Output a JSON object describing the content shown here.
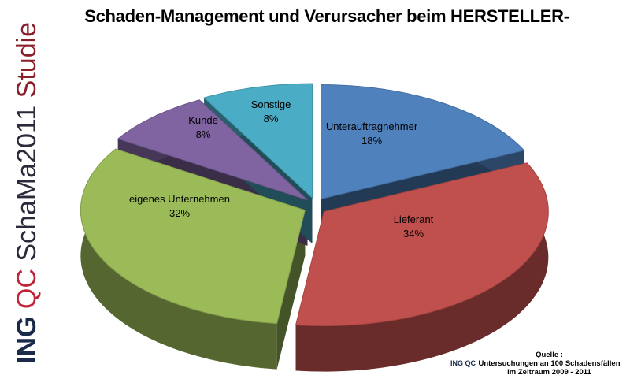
{
  "chart_data": {
    "type": "pie",
    "title": "Schaden-Management und Verursacher beim HERSTELLER-",
    "slices": [
      {
        "label": "Unterauftragnehmer",
        "value": 18,
        "value_label": "18%",
        "color": "#4f81bd"
      },
      {
        "label": "Lieferant",
        "value": 34,
        "value_label": "34%",
        "color": "#c0504d"
      },
      {
        "label": "eigenes Unternehmen",
        "value": 32,
        "value_label": "32%",
        "color": "#9bbb59"
      },
      {
        "label": "Kunde",
        "value": 8,
        "value_label": "8%",
        "color": "#8064a2"
      },
      {
        "label": "Sonstige",
        "value": 8,
        "value_label": "8%",
        "color": "#4bacc6"
      }
    ],
    "style": "3d-exploded"
  },
  "branding": {
    "ing": "ING",
    "qc": "QC",
    "name": "SchaMa2011",
    "studie": "Studie"
  },
  "source": {
    "heading": "Quelle :",
    "line1": "Untersuchungen an 100 Schadensfällen",
    "line2": "im Zeitraum 2009 - 2011",
    "logo": "ING QC"
  }
}
